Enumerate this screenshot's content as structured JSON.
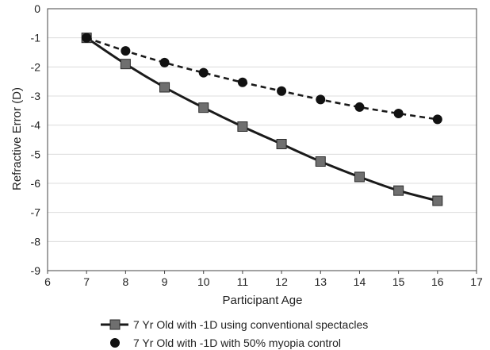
{
  "chart_data": {
    "type": "line",
    "title": "",
    "xlabel": "Participant Age",
    "ylabel": "Refractive Error (D)",
    "xlim": [
      6,
      17
    ],
    "ylim": [
      -9,
      0
    ],
    "x_ticks": [
      "6",
      "7",
      "8",
      "9",
      "10",
      "11",
      "12",
      "13",
      "14",
      "15",
      "16",
      "17"
    ],
    "y_ticks": [
      "0",
      "-1",
      "-2",
      "-3",
      "-4",
      "-5",
      "-6",
      "-7",
      "-8",
      "-9"
    ],
    "grid": true,
    "legend_position": "bottom",
    "series": [
      {
        "name": "7 Yr Old with -1D using  conventional spectacles",
        "marker": "square",
        "line_style": "solid",
        "color": "#1a1a1a",
        "marker_color": "#6f6f6f",
        "x": [
          7,
          8,
          9,
          10,
          11,
          12,
          13,
          14,
          15,
          16
        ],
        "y": [
          -1.0,
          -1.9,
          -2.7,
          -3.4,
          -4.05,
          -4.65,
          -5.25,
          -5.78,
          -6.25,
          -6.6
        ]
      },
      {
        "name": "7 Yr Old with -1D with 50% myopia control",
        "marker": "circle",
        "line_style": "dashed",
        "color": "#1a1a1a",
        "marker_color": "#111111",
        "x": [
          7,
          8,
          9,
          10,
          11,
          12,
          13,
          14,
          15,
          16
        ],
        "y": [
          -1.0,
          -1.45,
          -1.85,
          -2.2,
          -2.53,
          -2.83,
          -3.12,
          -3.38,
          -3.6,
          -3.8
        ]
      }
    ]
  }
}
